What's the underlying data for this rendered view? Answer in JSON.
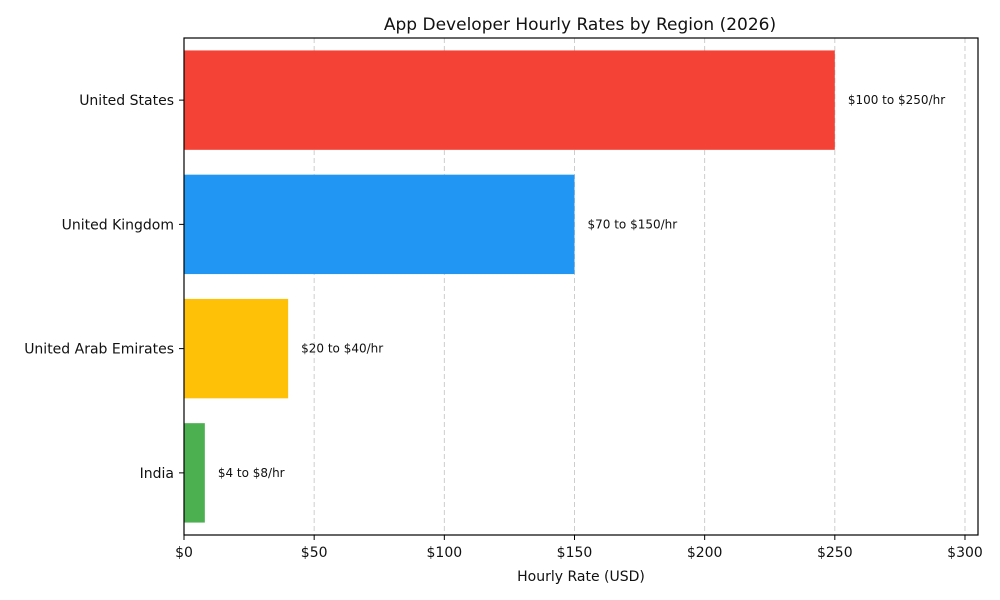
{
  "chart_data": {
    "type": "bar",
    "orientation": "horizontal",
    "title": "App Developer Hourly Rates by Region (2026)",
    "xlabel": "Hourly Rate (USD)",
    "ylabel": "",
    "categories": [
      "United States",
      "United Kingdom",
      "United Arab Emirates",
      "India"
    ],
    "values": [
      250,
      150,
      40,
      8
    ],
    "data_labels": [
      "$100 to $250/hr",
      "$70 to $150/hr",
      "$20 to $40/hr",
      "$4 to $8/hr"
    ],
    "colors": [
      "#F44336",
      "#2196F3",
      "#FFC107",
      "#4CAF50"
    ],
    "xlim": [
      0,
      305
    ],
    "xticks": [
      0,
      50,
      100,
      150,
      200,
      250,
      300
    ],
    "xtick_labels": [
      "$0",
      "$50",
      "$100",
      "$150",
      "$200",
      "$250",
      "$300"
    ],
    "grid": "x-dashed",
    "legend": "none"
  }
}
